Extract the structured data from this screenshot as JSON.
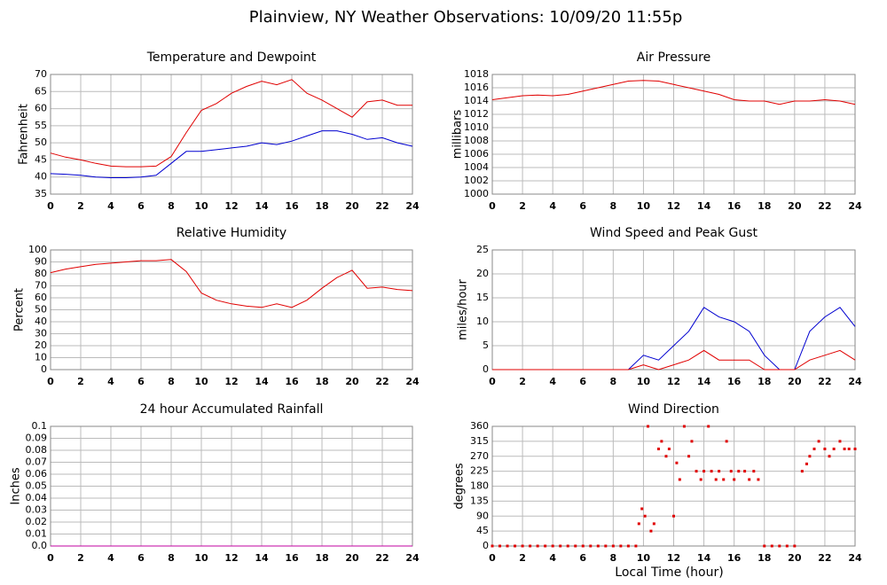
{
  "title": "Plainview, NY Weather Observations: 10/09/20 11:55p",
  "chart_data": [
    {
      "type": "line",
      "title": "Temperature and Dewpoint",
      "ylabel": "Fahrenheit",
      "grid": true,
      "xlim": [
        0,
        24
      ],
      "xticks": [
        0,
        2,
        4,
        6,
        8,
        10,
        12,
        14,
        16,
        18,
        20,
        22,
        24
      ],
      "ylim": [
        35,
        70
      ],
      "yticks": [
        35,
        40,
        45,
        50,
        55,
        60,
        65,
        70
      ],
      "x": [
        0,
        1,
        2,
        3,
        4,
        5,
        6,
        7,
        8,
        9,
        10,
        11,
        12,
        13,
        14,
        15,
        16,
        17,
        18,
        19,
        20,
        21,
        22,
        23,
        24
      ],
      "series": [
        {
          "color": "#e00000",
          "values": [
            47,
            45.8,
            45,
            44,
            43.2,
            43,
            43,
            43.2,
            46,
            53,
            59.5,
            61.5,
            64.5,
            66.5,
            68,
            67,
            68.5,
            64.5,
            62.5,
            60,
            57.5,
            62,
            62.5,
            61,
            61
          ]
        },
        {
          "color": "#0000d0",
          "values": [
            41,
            40.8,
            40.5,
            40,
            39.8,
            39.8,
            40,
            40.5,
            44,
            47.5,
            47.5,
            48,
            48.5,
            49,
            50,
            49.5,
            50.5,
            52,
            53.5,
            53.5,
            52.5,
            51,
            51.5,
            50,
            49
          ]
        }
      ]
    },
    {
      "type": "line",
      "title": "Air Pressure",
      "ylabel": "millibars",
      "grid": true,
      "xlim": [
        0,
        24
      ],
      "xticks": [
        0,
        2,
        4,
        6,
        8,
        10,
        12,
        14,
        16,
        18,
        20,
        22,
        24
      ],
      "ylim": [
        1000,
        1018
      ],
      "yticks": [
        1000,
        1002,
        1004,
        1006,
        1008,
        1010,
        1012,
        1014,
        1016,
        1018
      ],
      "x": [
        0,
        1,
        2,
        3,
        4,
        5,
        6,
        7,
        8,
        9,
        10,
        11,
        12,
        13,
        14,
        15,
        16,
        17,
        18,
        19,
        20,
        21,
        22,
        23,
        24
      ],
      "series": [
        {
          "color": "#e00000",
          "values": [
            1014.2,
            1014.5,
            1014.8,
            1014.9,
            1014.8,
            1015,
            1015.5,
            1016,
            1016.5,
            1017,
            1017.1,
            1017,
            1016.5,
            1016,
            1015.5,
            1015,
            1014.2,
            1014,
            1014,
            1013.5,
            1014,
            1014,
            1014.2,
            1014,
            1013.5
          ]
        }
      ]
    },
    {
      "type": "line",
      "title": "Relative Humidity",
      "ylabel": "Percent",
      "grid": true,
      "xlim": [
        0,
        24
      ],
      "xticks": [
        0,
        2,
        4,
        6,
        8,
        10,
        12,
        14,
        16,
        18,
        20,
        22,
        24
      ],
      "ylim": [
        0,
        100
      ],
      "yticks": [
        0,
        10,
        20,
        30,
        40,
        50,
        60,
        70,
        80,
        90,
        100
      ],
      "x": [
        0,
        1,
        2,
        3,
        4,
        5,
        6,
        7,
        8,
        9,
        10,
        11,
        12,
        13,
        14,
        15,
        16,
        17,
        18,
        19,
        20,
        21,
        22,
        23,
        24
      ],
      "series": [
        {
          "color": "#e00000",
          "values": [
            81,
            84,
            86,
            88,
            89,
            90,
            91,
            91,
            92,
            82,
            64,
            58,
            55,
            53,
            52,
            55,
            52,
            58,
            68,
            77,
            83,
            68,
            69,
            67,
            66
          ]
        }
      ]
    },
    {
      "type": "line",
      "title": "Wind Speed and Peak Gust",
      "ylabel": "miles/hour",
      "grid": true,
      "xlim": [
        0,
        24
      ],
      "xticks": [
        0,
        2,
        4,
        6,
        8,
        10,
        12,
        14,
        16,
        18,
        20,
        22,
        24
      ],
      "ylim": [
        0,
        25
      ],
      "yticks": [
        0,
        5,
        10,
        15,
        20,
        25
      ],
      "x": [
        0,
        1,
        2,
        3,
        4,
        5,
        6,
        7,
        8,
        9,
        10,
        11,
        12,
        13,
        14,
        15,
        16,
        17,
        18,
        19,
        20,
        21,
        22,
        23,
        24
      ],
      "series": [
        {
          "color": "#0000d0",
          "values": [
            0,
            0,
            0,
            0,
            0,
            0,
            0,
            0,
            0,
            0,
            3,
            2,
            5,
            8,
            13,
            11,
            10,
            8,
            3,
            0,
            0,
            8,
            11,
            13,
            9
          ]
        },
        {
          "color": "#e00000",
          "values": [
            0,
            0,
            0,
            0,
            0,
            0,
            0,
            0,
            0,
            0,
            1,
            0,
            1,
            2,
            4,
            2,
            2,
            2,
            0,
            0,
            0,
            2,
            3,
            4,
            2
          ]
        }
      ]
    },
    {
      "type": "line",
      "title": "24 hour Accumulated Rainfall",
      "ylabel": "Inches",
      "grid": true,
      "xlim": [
        0,
        24
      ],
      "xticks": [
        0,
        2,
        4,
        6,
        8,
        10,
        12,
        14,
        16,
        18,
        20,
        22,
        24
      ],
      "ylim": [
        0,
        0.1
      ],
      "yticks": [
        {
          "value": 0,
          "label": "0.0"
        },
        0.01,
        0.02,
        0.03,
        0.04,
        0.05,
        0.06,
        0.07,
        0.08,
        0.09,
        0.1
      ],
      "x": [
        0,
        1,
        2,
        3,
        4,
        5,
        6,
        7,
        8,
        9,
        10,
        11,
        12,
        13,
        14,
        15,
        16,
        17,
        18,
        19,
        20,
        21,
        22,
        23,
        24
      ],
      "series": [
        {
          "color": "#c000a0",
          "values": [
            0,
            0,
            0,
            0,
            0,
            0,
            0,
            0,
            0,
            0,
            0,
            0,
            0,
            0,
            0,
            0,
            0,
            0,
            0,
            0,
            0,
            0,
            0,
            0,
            0
          ]
        }
      ]
    },
    {
      "type": "scatter",
      "title": "Wind Direction",
      "ylabel": "degrees",
      "xlabel": "Local Time (hour)",
      "grid": true,
      "color": "#e00000",
      "xlim": [
        0,
        24
      ],
      "xticks": [
        0,
        2,
        4,
        6,
        8,
        10,
        12,
        14,
        16,
        18,
        20,
        22,
        24
      ],
      "ylim": [
        0,
        360
      ],
      "yticks": [
        0,
        45,
        90,
        135,
        180,
        225,
        270,
        315,
        360
      ],
      "x": [
        0,
        0.5,
        1,
        1.5,
        2,
        2.5,
        3,
        3.5,
        4,
        4.5,
        5,
        5.5,
        6,
        6.5,
        7,
        7.5,
        8,
        8.5,
        9,
        9.5,
        9.7,
        9.9,
        10.1,
        10.3,
        10.5,
        10.7,
        11,
        11.2,
        11.5,
        11.7,
        12,
        12.2,
        12.4,
        12.7,
        13,
        13.2,
        13.5,
        13.8,
        14,
        14.3,
        14.5,
        14.8,
        15,
        15.3,
        15.5,
        15.8,
        16,
        16.3,
        16.7,
        17,
        17.3,
        17.6,
        18,
        18.5,
        19,
        19.5,
        20,
        20.5,
        20.8,
        21,
        21.3,
        21.6,
        22,
        22.3,
        22.6,
        23,
        23.3,
        23.6,
        24
      ],
      "values": [
        0,
        0,
        0,
        0,
        0,
        0,
        0,
        0,
        0,
        0,
        0,
        0,
        0,
        0,
        0,
        0,
        0,
        0,
        0,
        0,
        67,
        112,
        90,
        360,
        45,
        67,
        292,
        315,
        270,
        292,
        90,
        250,
        200,
        360,
        270,
        315,
        225,
        200,
        225,
        360,
        225,
        200,
        225,
        200,
        315,
        225,
        200,
        225,
        225,
        200,
        225,
        200,
        0,
        0,
        0,
        0,
        0,
        225,
        247,
        270,
        292,
        315,
        292,
        270,
        292,
        315,
        292,
        292,
        292
      ]
    }
  ]
}
